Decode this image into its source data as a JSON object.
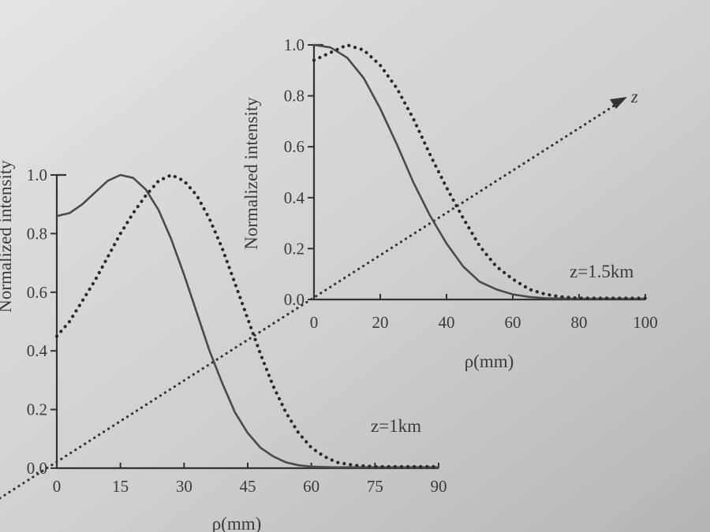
{
  "chart_data": [
    {
      "type": "line",
      "annotation": "z=1km",
      "xlabel": "ρ(mm)",
      "ylabel": "Normalized intensity",
      "xlim": [
        0,
        90
      ],
      "ylim": [
        0,
        1.0
      ],
      "x_ticks": [
        "0",
        "15",
        "30",
        "45",
        "60",
        "75",
        "90"
      ],
      "y_ticks": [
        "0.0",
        "0.2",
        "0.4",
        "0.6",
        "0.8",
        "1.0"
      ],
      "series": [
        {
          "style": "solid",
          "x": [
            0,
            3,
            6,
            9,
            12,
            15,
            18,
            21,
            24,
            27,
            30,
            33,
            36,
            39,
            42,
            45,
            48,
            51,
            54,
            57,
            60,
            65,
            70,
            75,
            80,
            90
          ],
          "y": [
            0.86,
            0.87,
            0.9,
            0.94,
            0.98,
            1.0,
            0.99,
            0.95,
            0.88,
            0.78,
            0.66,
            0.53,
            0.4,
            0.29,
            0.19,
            0.12,
            0.07,
            0.04,
            0.02,
            0.01,
            0.005,
            0.003,
            0.003,
            0.003,
            0.003,
            0.003
          ]
        },
        {
          "style": "dotted",
          "x": [
            0,
            3,
            6,
            9,
            12,
            15,
            18,
            21,
            24,
            27,
            30,
            33,
            36,
            39,
            42,
            45,
            48,
            51,
            54,
            57,
            60,
            63,
            66,
            70,
            75,
            80,
            90
          ],
          "y": [
            0.45,
            0.5,
            0.57,
            0.64,
            0.72,
            0.8,
            0.87,
            0.93,
            0.98,
            1.0,
            0.98,
            0.93,
            0.85,
            0.75,
            0.63,
            0.51,
            0.39,
            0.28,
            0.19,
            0.12,
            0.07,
            0.04,
            0.02,
            0.01,
            0.005,
            0.005,
            0.005
          ]
        }
      ]
    },
    {
      "type": "line",
      "annotation": "z=1.5km",
      "xlabel": "ρ(mm)",
      "ylabel": "Normalized intensity",
      "xlim": [
        0,
        100
      ],
      "ylim": [
        0,
        1.0
      ],
      "x_ticks": [
        "0",
        "20",
        "40",
        "60",
        "80",
        "100"
      ],
      "y_ticks": [
        "0.0",
        "0.2",
        "0.4",
        "0.6",
        "0.8",
        "1.0"
      ],
      "series": [
        {
          "style": "solid",
          "x": [
            0,
            5,
            10,
            15,
            20,
            25,
            30,
            35,
            40,
            45,
            50,
            55,
            60,
            65,
            70,
            80,
            90,
            100
          ],
          "y": [
            1.0,
            0.99,
            0.95,
            0.87,
            0.75,
            0.61,
            0.46,
            0.33,
            0.22,
            0.13,
            0.07,
            0.04,
            0.02,
            0.01,
            0.005,
            0.003,
            0.003,
            0.003
          ]
        },
        {
          "style": "dotted",
          "x": [
            0,
            5,
            10,
            15,
            20,
            25,
            30,
            35,
            40,
            45,
            50,
            55,
            60,
            65,
            70,
            75,
            80,
            90,
            100
          ],
          "y": [
            0.94,
            0.97,
            1.0,
            0.98,
            0.92,
            0.83,
            0.71,
            0.57,
            0.44,
            0.32,
            0.21,
            0.13,
            0.08,
            0.04,
            0.02,
            0.01,
            0.005,
            0.005,
            0.005
          ]
        }
      ]
    }
  ],
  "z_axis_label": "z"
}
